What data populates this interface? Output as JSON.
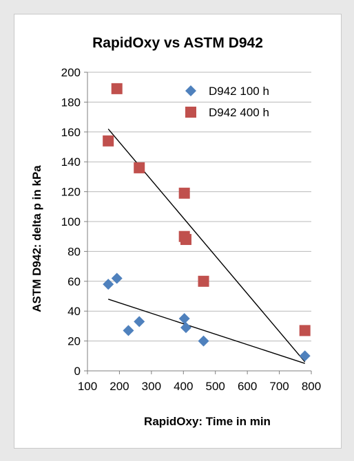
{
  "chart_data": {
    "type": "scatter",
    "title": "RapidOxy vs ASTM D942",
    "xlabel": "RapidOxy: Time in min",
    "ylabel": "ASTM D942: delta p in kPa",
    "xlim": [
      100,
      800
    ],
    "ylim": [
      0,
      200
    ],
    "xticks": [
      100,
      200,
      300,
      400,
      500,
      600,
      700,
      800
    ],
    "yticks": [
      0,
      20,
      40,
      60,
      80,
      100,
      120,
      140,
      160,
      180,
      200
    ],
    "grid": "horizontal",
    "legend_position": "top-right",
    "series": [
      {
        "name": "D942 100 h",
        "marker": "diamond",
        "color": "#4f81bd",
        "points": [
          {
            "x": 165,
            "y": 58
          },
          {
            "x": 192,
            "y": 62
          },
          {
            "x": 228,
            "y": 27
          },
          {
            "x": 262,
            "y": 33
          },
          {
            "x": 403,
            "y": 35
          },
          {
            "x": 408,
            "y": 29
          },
          {
            "x": 463,
            "y": 20
          },
          {
            "x": 780,
            "y": 10
          }
        ],
        "trendline": {
          "x": [
            165,
            780
          ],
          "y": [
            48,
            5
          ]
        }
      },
      {
        "name": "D942 400 h",
        "marker": "square",
        "color": "#c0504d",
        "points": [
          {
            "x": 165,
            "y": 154
          },
          {
            "x": 192,
            "y": 189
          },
          {
            "x": 262,
            "y": 136
          },
          {
            "x": 403,
            "y": 119
          },
          {
            "x": 403,
            "y": 90
          },
          {
            "x": 408,
            "y": 88
          },
          {
            "x": 463,
            "y": 60
          },
          {
            "x": 780,
            "y": 27
          }
        ],
        "trendline": {
          "x": [
            165,
            780
          ],
          "y": [
            162,
            6
          ]
        }
      }
    ]
  }
}
